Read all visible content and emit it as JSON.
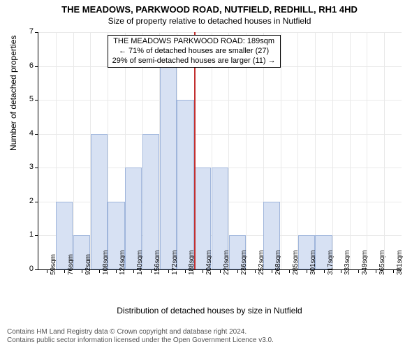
{
  "title_main": "THE MEADOWS, PARKWOOD ROAD, NUTFIELD, REDHILL, RH1 4HD",
  "title_sub": "Size of property relative to detached houses in Nutfield",
  "ylabel": "Number of detached properties",
  "xlabel": "Distribution of detached houses by size in Nutfield",
  "chart": {
    "type": "histogram",
    "bar_color": "#d7e1f3",
    "bar_border": "#9fb5db",
    "grid_color": "#e9e9e9",
    "background_color": "#ffffff",
    "axis_color": "#000000",
    "marker_color": "#c23030",
    "ylim": [
      0,
      7
    ],
    "yticks": [
      0,
      1,
      2,
      3,
      4,
      5,
      6,
      7
    ],
    "xticks": [
      "59sqm",
      "76sqm",
      "92sqm",
      "108sqm",
      "124sqm",
      "140sqm",
      "156sqm",
      "172sqm",
      "188sqm",
      "204sqm",
      "220sqm",
      "236sqm",
      "252sqm",
      "268sqm",
      "285sqm",
      "301sqm",
      "317sqm",
      "333sqm",
      "349sqm",
      "365sqm",
      "381sqm"
    ],
    "values": [
      0,
      2,
      1,
      4,
      2,
      3,
      4,
      6,
      5,
      3,
      3,
      1,
      0,
      2,
      0,
      1,
      1,
      0,
      0,
      0,
      0
    ],
    "marker_index": 8,
    "bar_width": 0.98,
    "title_fontsize": 13,
    "label_fontsize": 12,
    "tick_fontsize_x": 10,
    "tick_fontsize_y": 11
  },
  "annot": {
    "l1": "THE MEADOWS PARKWOOD ROAD: 189sqm",
    "l2": "← 71% of detached houses are smaller (27)",
    "l3": "29% of semi-detached houses are larger (11) →"
  },
  "footer": {
    "l1": "Contains HM Land Registry data © Crown copyright and database right 2024.",
    "l2": "Contains public sector information licensed under the Open Government Licence v3.0."
  }
}
